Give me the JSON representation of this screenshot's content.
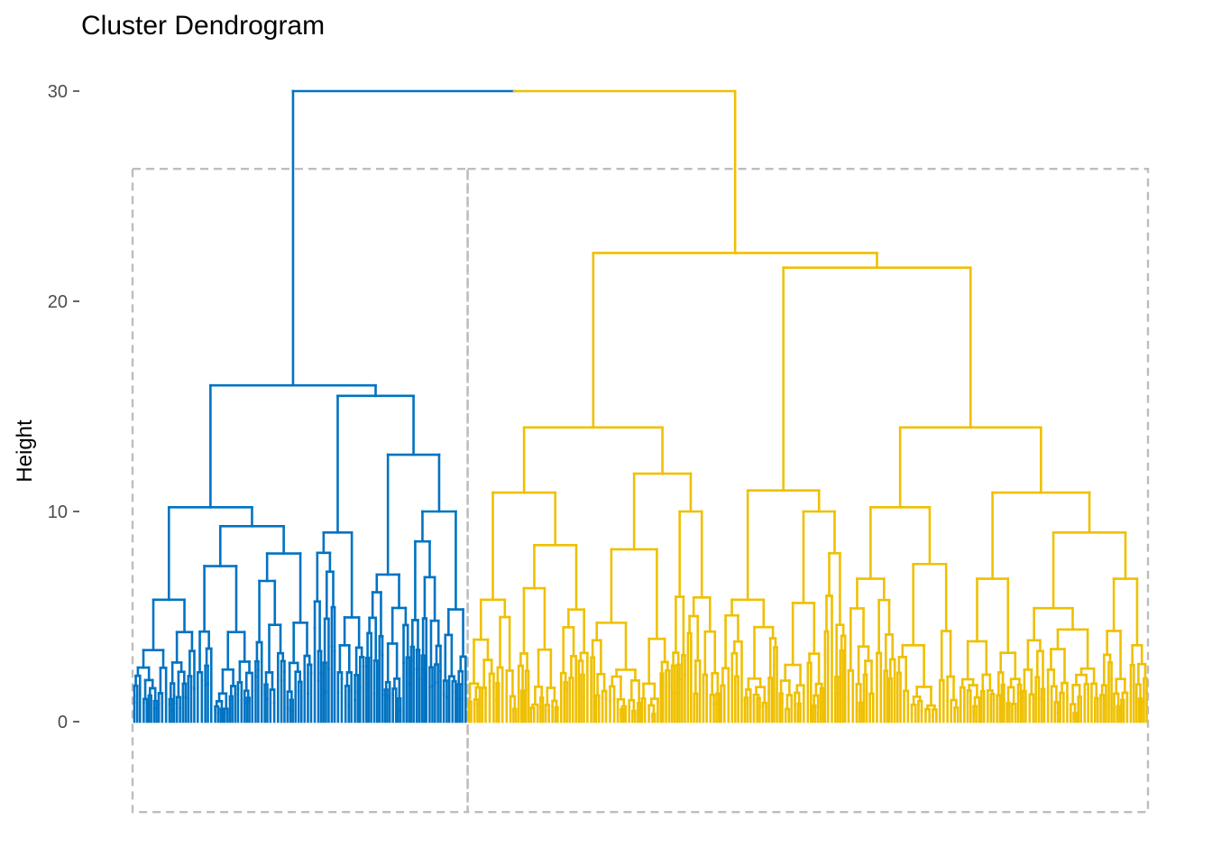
{
  "chart_data": {
    "type": "dendrogram",
    "title": "Cluster Dendrogram",
    "xlabel": "",
    "ylabel": "Height",
    "ylim": [
      -4.3,
      30
    ],
    "yticks": [
      0,
      10,
      20,
      30
    ],
    "grid": false,
    "clusters": [
      {
        "color": "#0073C2",
        "leaf_fraction": 0.33
      },
      {
        "color": "#EFC000",
        "leaf_fraction": 0.67
      }
    ],
    "cluster_boxes": true,
    "root_height": 30.0,
    "merges": [
      {
        "height": 30.0,
        "cluster": "root"
      },
      {
        "height": 16.0,
        "cluster": 1
      },
      {
        "height": 15.5,
        "cluster": 1
      },
      {
        "height": 12.7,
        "cluster": 1
      },
      {
        "height": 10.2,
        "cluster": 1
      },
      {
        "height": 9.3,
        "cluster": 1
      },
      {
        "height": 22.3,
        "cluster": 2
      },
      {
        "height": 21.6,
        "cluster": 2
      },
      {
        "height": 14.0,
        "cluster": 2
      },
      {
        "height": 14.0,
        "cluster": 2
      },
      {
        "height": 11.8,
        "cluster": 2
      },
      {
        "height": 11.0,
        "cluster": 2
      },
      {
        "height": 10.9,
        "cluster": 2
      },
      {
        "height": 10.9,
        "cluster": 2
      },
      {
        "height": 10.2,
        "cluster": 2
      },
      {
        "height": 9.0,
        "cluster": 2
      }
    ]
  }
}
